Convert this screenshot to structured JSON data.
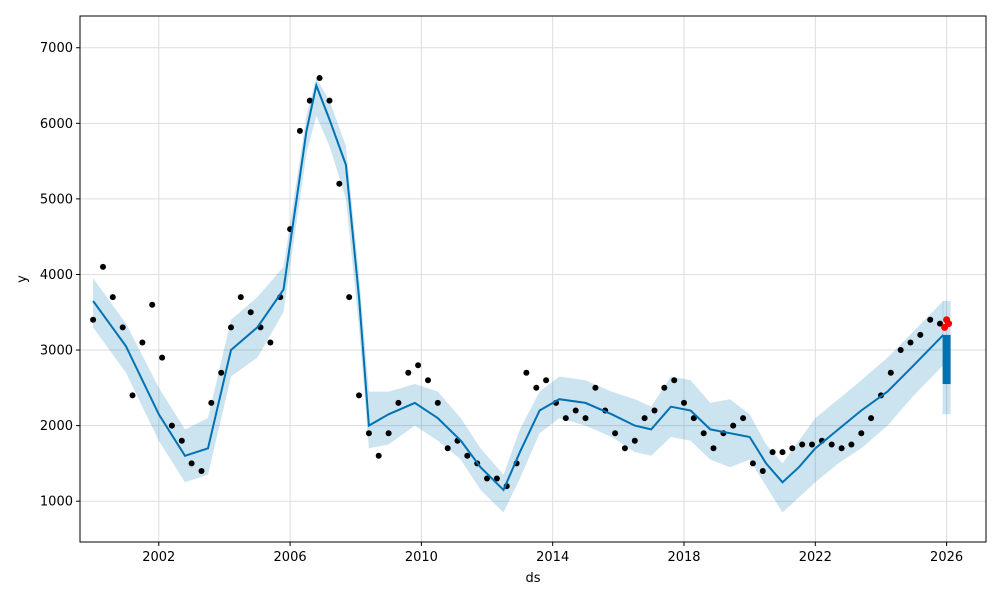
{
  "colors": {
    "background": "#ffffff",
    "grid": "#dddddd",
    "observed_points": "#000000",
    "forecast_line": "#0072b2",
    "uncertainty_band": "#0072b2",
    "future_points": "#ff0000"
  },
  "chart_data": {
    "type": "line",
    "xlabel": "ds",
    "ylabel": "y",
    "grid": true,
    "xlim": [
      1999.6,
      2027.2
    ],
    "ylim": [
      460,
      7420
    ],
    "x_ticks": [
      {
        "value": 2002,
        "label": "2002"
      },
      {
        "value": 2006,
        "label": "2006"
      },
      {
        "value": 2010,
        "label": "2010"
      },
      {
        "value": 2014,
        "label": "2014"
      },
      {
        "value": 2018,
        "label": "2018"
      },
      {
        "value": 2022,
        "label": "2022"
      },
      {
        "value": 2026,
        "label": "2026"
      }
    ],
    "y_ticks": [
      {
        "value": 1000,
        "label": "1000"
      },
      {
        "value": 2000,
        "label": "2000"
      },
      {
        "value": 3000,
        "label": "3000"
      },
      {
        "value": 4000,
        "label": "4000"
      },
      {
        "value": 5000,
        "label": "5000"
      },
      {
        "value": 6000,
        "label": "6000"
      },
      {
        "value": 7000,
        "label": "7000"
      }
    ],
    "series": [
      {
        "kind": "uncertainty_band",
        "x": [
          2000.0,
          2001.0,
          2002.0,
          2002.8,
          2003.5,
          2004.2,
          2005.0,
          2005.8,
          2006.5,
          2006.8,
          2007.2,
          2007.7,
          2008.1,
          2008.4,
          2009.0,
          2009.8,
          2010.5,
          2011.2,
          2011.8,
          2012.5,
          2013.0,
          2013.6,
          2014.2,
          2015.0,
          2015.8,
          2016.5,
          2017.0,
          2017.6,
          2018.2,
          2018.8,
          2019.4,
          2020.0,
          2020.5,
          2021.0,
          2021.5,
          2022.0,
          2022.7,
          2023.4,
          2024.2,
          2025.0,
          2025.9
        ],
        "lower": [
          3300,
          2700,
          1800,
          1250,
          1350,
          2650,
          2900,
          3500,
          5600,
          6100,
          5700,
          5000,
          3300,
          1700,
          1750,
          2000,
          1800,
          1550,
          1150,
          850,
          1300,
          1900,
          2100,
          2000,
          1850,
          1650,
          1600,
          1850,
          1800,
          1550,
          1450,
          1550,
          1200,
          850,
          1050,
          1250,
          1500,
          1700,
          2000,
          2400,
          2800
        ],
        "upper": [
          3950,
          3350,
          2500,
          1950,
          2100,
          3400,
          3700,
          4100,
          6100,
          6600,
          6300,
          5700,
          4000,
          2450,
          2450,
          2550,
          2450,
          2100,
          1700,
          1350,
          1950,
          2450,
          2650,
          2600,
          2450,
          2350,
          2250,
          2650,
          2600,
          2300,
          2350,
          2150,
          1750,
          1500,
          1800,
          2100,
          2350,
          2600,
          2900,
          3250,
          3650
        ]
      },
      {
        "kind": "forecast_line",
        "x": [
          2000.0,
          2001.0,
          2002.0,
          2002.8,
          2003.5,
          2004.2,
          2005.0,
          2005.8,
          2006.5,
          2006.8,
          2007.2,
          2007.7,
          2008.1,
          2008.4,
          2009.0,
          2009.8,
          2010.5,
          2011.2,
          2011.8,
          2012.5,
          2013.0,
          2013.6,
          2014.2,
          2015.0,
          2015.8,
          2016.5,
          2017.0,
          2017.6,
          2018.2,
          2018.8,
          2019.4,
          2020.0,
          2020.5,
          2021.0,
          2021.5,
          2022.0,
          2022.7,
          2023.4,
          2024.2,
          2025.0,
          2025.9
        ],
        "y": [
          3650,
          3050,
          2150,
          1600,
          1700,
          3000,
          3300,
          3800,
          5900,
          6500,
          6050,
          5450,
          3700,
          2000,
          2150,
          2300,
          2100,
          1800,
          1450,
          1150,
          1650,
          2200,
          2350,
          2300,
          2150,
          2000,
          1950,
          2250,
          2200,
          1950,
          1900,
          1850,
          1500,
          1250,
          1450,
          1700,
          1950,
          2200,
          2450,
          2800,
          3200
        ]
      },
      {
        "kind": "observed_points",
        "x": [
          2000.0,
          2000.3,
          2000.6,
          2000.9,
          2001.2,
          2001.5,
          2001.8,
          2002.1,
          2002.4,
          2002.7,
          2003.0,
          2003.3,
          2003.6,
          2003.9,
          2004.2,
          2004.5,
          2004.8,
          2005.1,
          2005.4,
          2005.7,
          2006.0,
          2006.3,
          2006.6,
          2006.9,
          2007.2,
          2007.5,
          2007.8,
          2008.1,
          2008.4,
          2008.7,
          2009.0,
          2009.3,
          2009.6,
          2009.9,
          2010.2,
          2010.5,
          2010.8,
          2011.1,
          2011.4,
          2011.7,
          2012.0,
          2012.3,
          2012.6,
          2012.9,
          2013.2,
          2013.5,
          2013.8,
          2014.1,
          2014.4,
          2014.7,
          2015.0,
          2015.3,
          2015.6,
          2015.9,
          2016.2,
          2016.5,
          2016.8,
          2017.1,
          2017.4,
          2017.7,
          2018.0,
          2018.3,
          2018.6,
          2018.9,
          2019.2,
          2019.5,
          2019.8,
          2020.1,
          2020.4,
          2020.7,
          2021.0,
          2021.3,
          2021.6,
          2021.9,
          2022.2,
          2022.5,
          2022.8,
          2023.1,
          2023.4,
          2023.7,
          2024.0,
          2024.3,
          2024.6,
          2024.9,
          2025.2,
          2025.5,
          2025.8
        ],
        "y": [
          3400,
          4100,
          3700,
          3300,
          2400,
          3100,
          3600,
          2900,
          2000,
          1800,
          1500,
          1400,
          2300,
          2700,
          3300,
          3700,
          3500,
          3300,
          3100,
          3700,
          4600,
          5900,
          6300,
          6600,
          6300,
          5200,
          3700,
          2400,
          1900,
          1600,
          1900,
          2300,
          2700,
          2800,
          2600,
          2300,
          1700,
          1800,
          1600,
          1500,
          1300,
          1300,
          1200,
          1500,
          2700,
          2500,
          2600,
          2300,
          2100,
          2200,
          2100,
          2500,
          2200,
          1900,
          1700,
          1800,
          2100,
          2200,
          2500,
          2600,
          2300,
          2100,
          1900,
          1700,
          1900,
          2000,
          2100,
          1500,
          1400,
          1650,
          1650,
          1700,
          1750,
          1750,
          1800,
          1750,
          1700,
          1750,
          1900,
          2100,
          2400,
          2700,
          3000,
          3100,
          3200,
          3400,
          3350
        ]
      }
    ],
    "future": {
      "x": 2026.0,
      "forecast_range": [
        2550,
        3200
      ],
      "band_range": [
        2150,
        3650
      ],
      "red_points": [
        3300,
        3400,
        3350
      ]
    }
  }
}
